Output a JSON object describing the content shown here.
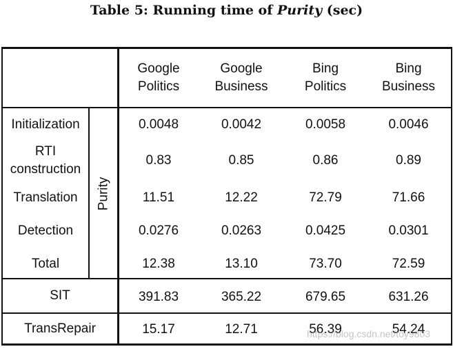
{
  "caption": {
    "prefix": "Table 5: Running time of ",
    "emph": "Purity",
    "suffix": " (sec)"
  },
  "columns": [
    {
      "line1": "Google",
      "line2": "Politics"
    },
    {
      "line1": "Google",
      "line2": "Business"
    },
    {
      "line1": "Bing",
      "line2": "Politics"
    },
    {
      "line1": "Bing",
      "line2": "Business"
    }
  ],
  "group_label": "Purity",
  "rows": [
    {
      "line1": "Initialization",
      "line2": "",
      "values": [
        "0.0048",
        "0.0042",
        "0.0058",
        "0.0046"
      ]
    },
    {
      "line1": "RTI",
      "line2": "construction",
      "values": [
        "0.83",
        "0.85",
        "0.86",
        "0.89"
      ]
    },
    {
      "line1": "Translation",
      "line2": "",
      "values": [
        "11.51",
        "12.22",
        "72.79",
        "71.66"
      ]
    },
    {
      "line1": "Detection",
      "line2": "",
      "values": [
        "0.0276",
        "0.0263",
        "0.0425",
        "0.0301"
      ]
    },
    {
      "line1": "Total",
      "line2": "",
      "values": [
        "12.38",
        "13.10",
        "73.70",
        "72.59"
      ]
    }
  ],
  "baselines": [
    {
      "label": "SIT",
      "values": [
        "391.83",
        "365.22",
        "679.65",
        "631.26"
      ]
    },
    {
      "label": "TransRepair",
      "values": [
        "15.17",
        "12.71",
        "56.39",
        "54.24"
      ]
    }
  ],
  "watermark": "https://blog.csdn.net/toy9803"
}
